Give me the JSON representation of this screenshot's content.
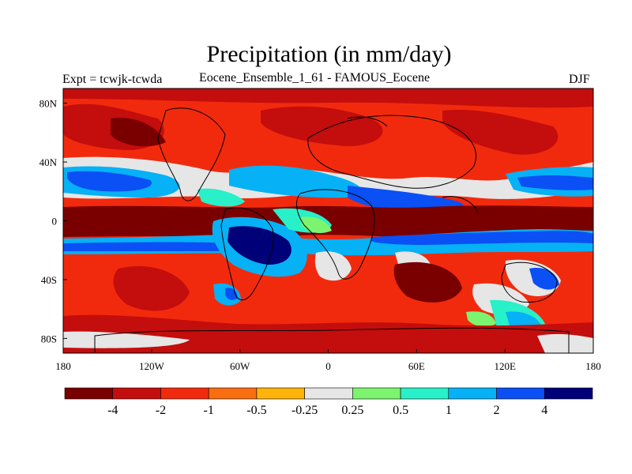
{
  "title": "Precipitation (in mm/day)",
  "left_label": "Expt = tcwjk-tcwda",
  "center_label": "Eocene_Ensemble_1_61 - FAMOUS_Eocene",
  "right_label": "DJF",
  "colors": {
    "continent_outline": "#000000",
    "levels": [
      "#7a0000",
      "#c40d0d",
      "#f22a0d",
      "#f96e10",
      "#fdb30a",
      "#e6e6e6",
      "#7cf46f",
      "#28f0c8",
      "#06b1f5",
      "#0a50f5",
      "#000078"
    ]
  },
  "axes": {
    "x_ticks": [
      "180",
      "120W",
      "60W",
      "0",
      "60E",
      "120E",
      "180"
    ],
    "y_ticks": [
      "80N",
      "40N",
      "0",
      "40S",
      "80S"
    ]
  },
  "colorbar": {
    "labels": [
      "-4",
      "-2",
      "-1",
      "-0.5",
      "-0.25",
      "0.25",
      "0.5",
      "1",
      "2",
      "4"
    ]
  },
  "chart_data": {
    "type": "heatmap",
    "variable": "Precipitation",
    "units": "mm/day",
    "season": "DJF",
    "x_range": [
      -180,
      180
    ],
    "y_range": [
      -90,
      90
    ],
    "contour_levels": [
      -4,
      -2,
      -1,
      -0.5,
      -0.25,
      0.25,
      0.5,
      1,
      2,
      4
    ],
    "regions": [
      {
        "lon_range": [
          -180,
          180
        ],
        "lat_range": [
          -90,
          90
        ],
        "value": -1.5
      },
      {
        "lon_range": [
          -180,
          -50
        ],
        "lat_range": [
          10,
          30
        ],
        "value": 0.25
      },
      {
        "lon_range": [
          -180,
          -100
        ],
        "lat_range": [
          15,
          35
        ],
        "value": 1.5
      },
      {
        "lon_range": [
          -60,
          20
        ],
        "lat_range": [
          -40,
          30
        ],
        "value": 1.2
      },
      {
        "lon_range": [
          -70,
          -20
        ],
        "lat_range": [
          -30,
          0
        ],
        "value": 5
      },
      {
        "lon_range": [
          -180,
          180
        ],
        "lat_range": [
          -25,
          -12
        ],
        "value": 2.5
      },
      {
        "lon_range": [
          -180,
          180
        ],
        "lat_range": [
          0,
          10
        ],
        "value": -5
      },
      {
        "lon_range": [
          -180,
          180
        ],
        "lat_range": [
          -12,
          -6
        ],
        "value": -5
      },
      {
        "lon_range": [
          -160,
          -120
        ],
        "lat_range": [
          60,
          75
        ],
        "value": -5
      },
      {
        "lon_range": [
          40,
          110
        ],
        "lat_range": [
          -50,
          -30
        ],
        "value": -5
      },
      {
        "lon_range": [
          100,
          150
        ],
        "lat_range": [
          -60,
          -40
        ],
        "value": 0.3
      }
    ]
  }
}
